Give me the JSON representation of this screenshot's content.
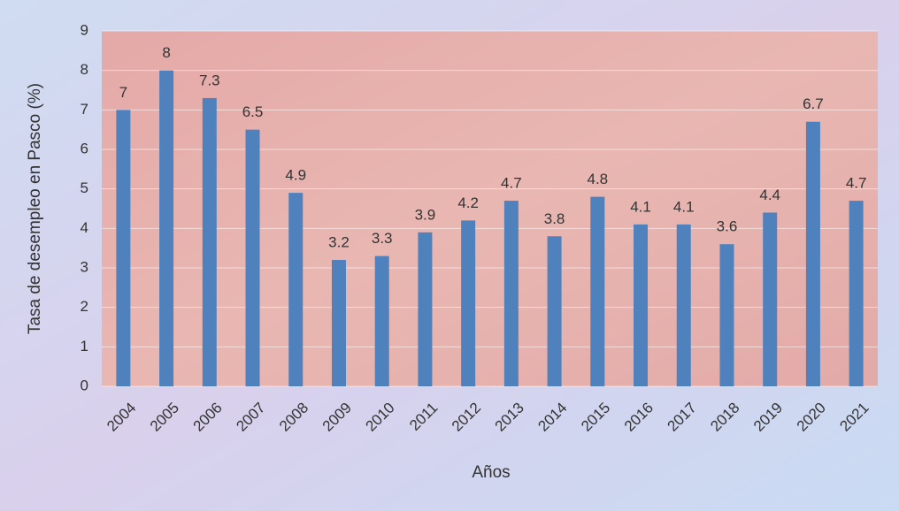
{
  "chart_data": {
    "type": "bar",
    "categories": [
      "2004",
      "2005",
      "2006",
      "2007",
      "2008",
      "2009",
      "2010",
      "2011",
      "2012",
      "2013",
      "2014",
      "2015",
      "2016",
      "2017",
      "2018",
      "2019",
      "2020",
      "2021"
    ],
    "values": [
      7,
      8,
      7.3,
      6.5,
      4.9,
      3.2,
      3.3,
      3.9,
      4.2,
      4.7,
      3.8,
      4.8,
      4.1,
      4.1,
      3.6,
      4.4,
      6.7,
      4.7
    ],
    "color": "#4f81bd",
    "ylim": [
      0,
      9
    ],
    "yticks": [
      0,
      1,
      2,
      3,
      4,
      5,
      6,
      7,
      8,
      9
    ],
    "grid": true,
    "y_label": "Tasa de desempleo  en Pasco (%)",
    "x_label": "Años"
  }
}
